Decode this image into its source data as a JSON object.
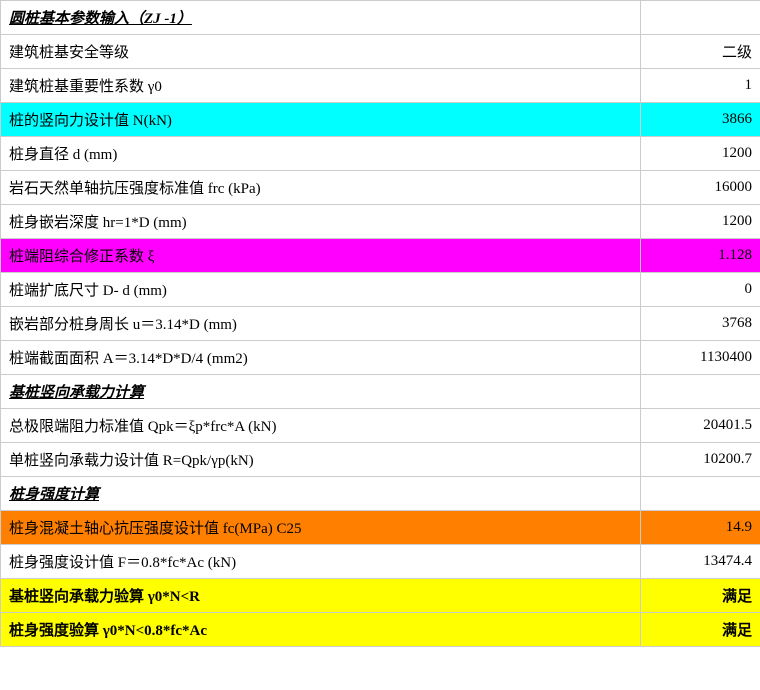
{
  "rows": [
    {
      "label": "圆桩基本参数输入（ZJ -1）",
      "value": "",
      "header": true,
      "bg": ""
    },
    {
      "label": "建筑桩基安全等级",
      "value": "二级",
      "header": false,
      "bg": ""
    },
    {
      "label": "建筑桩基重要性系数  γ0",
      "value": "1",
      "header": false,
      "bg": ""
    },
    {
      "label": "桩的竖向力设计值 N(kN)",
      "value": "3866",
      "header": false,
      "bg": "cyan"
    },
    {
      "label": "桩身直径  d (mm)",
      "value": "1200",
      "header": false,
      "bg": ""
    },
    {
      "label": "岩石天然单轴抗压强度标准值  frc (kPa)",
      "value": "16000",
      "header": false,
      "bg": ""
    },
    {
      "label": "桩身嵌岩深度  hr=1*D  (mm)",
      "value": "1200",
      "header": false,
      "bg": ""
    },
    {
      "label": "桩端阻综合修正系数 ξ",
      "value": "1.128",
      "header": false,
      "bg": "magenta"
    },
    {
      "label": "桩端扩底尺寸 D- d (mm)",
      "value": "0",
      "header": false,
      "bg": ""
    },
    {
      "label": "嵌岩部分桩身周长  u＝3.14*D (mm)",
      "value": "3768",
      "header": false,
      "bg": ""
    },
    {
      "label": "桩端截面面积  A＝3.14*D*D/4 (mm2)",
      "value": "1130400",
      "header": false,
      "bg": ""
    },
    {
      "label": "基桩竖向承载力计算",
      "value": "",
      "header": true,
      "bg": ""
    },
    {
      "label": "总极限端阻力标准值  Qpk＝ξp*frc*A (kN)",
      "value": "20401.5",
      "header": false,
      "bg": ""
    },
    {
      "label": "单桩竖向承载力设计值  R=Qpk/γp(kN)",
      "value": "10200.7",
      "header": false,
      "bg": ""
    },
    {
      "label": "桩身强度计算",
      "value": "",
      "header": true,
      "bg": ""
    },
    {
      "label": "桩身混凝土轴心抗压强度设计值  fc(MPa) C25",
      "value": "14.9",
      "header": false,
      "bg": "orange"
    },
    {
      "label": "桩身强度设计值  F＝0.8*fc*Ac (kN)",
      "value": "13474.4",
      "header": false,
      "bg": ""
    },
    {
      "label": "基桩竖向承载力验算 γ0*N<R",
      "value": "满足",
      "header": false,
      "bg": "yellow",
      "bold": true
    },
    {
      "label": "桩身强度验算 γ0*N<0.8*fc*Ac",
      "value": "满足",
      "header": false,
      "bg": "yellow",
      "bold": true
    }
  ]
}
